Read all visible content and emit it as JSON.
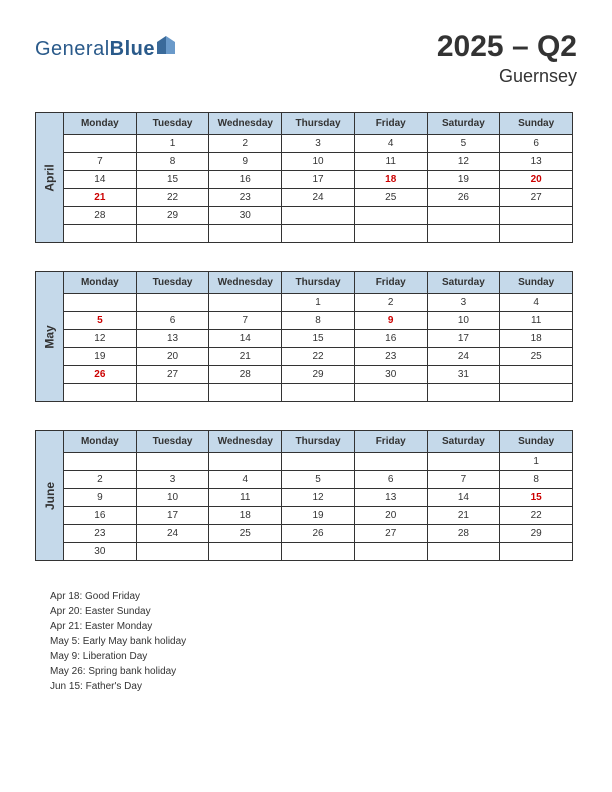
{
  "logo": {
    "text1": "General",
    "text2": "Blue"
  },
  "title": {
    "main": "2025 – Q2",
    "sub": "Guernsey"
  },
  "colors": {
    "header_bg": "#c5d9ea",
    "border": "#333333",
    "text": "#333333",
    "holiday": "#cc0000",
    "logo": "#2a5a8a"
  },
  "day_headers": [
    "Monday",
    "Tuesday",
    "Wednesday",
    "Thursday",
    "Friday",
    "Saturday",
    "Sunday"
  ],
  "months": [
    {
      "name": "April",
      "weeks": [
        [
          "",
          "1",
          "2",
          "3",
          "4",
          "5",
          "6"
        ],
        [
          "7",
          "8",
          "9",
          "10",
          "11",
          "12",
          "13"
        ],
        [
          "14",
          "15",
          "16",
          "17",
          "18",
          "19",
          "20"
        ],
        [
          "21",
          "22",
          "23",
          "24",
          "25",
          "26",
          "27"
        ],
        [
          "28",
          "29",
          "30",
          "",
          "",
          "",
          ""
        ],
        [
          "",
          "",
          "",
          "",
          "",
          "",
          ""
        ]
      ],
      "holidays": [
        [
          2,
          4
        ],
        [
          2,
          6
        ],
        [
          3,
          0
        ]
      ]
    },
    {
      "name": "May",
      "weeks": [
        [
          "",
          "",
          "",
          "1",
          "2",
          "3",
          "4"
        ],
        [
          "5",
          "6",
          "7",
          "8",
          "9",
          "10",
          "11"
        ],
        [
          "12",
          "13",
          "14",
          "15",
          "16",
          "17",
          "18"
        ],
        [
          "19",
          "20",
          "21",
          "22",
          "23",
          "24",
          "25"
        ],
        [
          "26",
          "27",
          "28",
          "29",
          "30",
          "31",
          ""
        ],
        [
          "",
          "",
          "",
          "",
          "",
          "",
          ""
        ]
      ],
      "holidays": [
        [
          1,
          0
        ],
        [
          1,
          4
        ],
        [
          4,
          0
        ]
      ]
    },
    {
      "name": "June",
      "weeks": [
        [
          "",
          "",
          "",
          "",
          "",
          "",
          "1"
        ],
        [
          "2",
          "3",
          "4",
          "5",
          "6",
          "7",
          "8"
        ],
        [
          "9",
          "10",
          "11",
          "12",
          "13",
          "14",
          "15"
        ],
        [
          "16",
          "17",
          "18",
          "19",
          "20",
          "21",
          "22"
        ],
        [
          "23",
          "24",
          "25",
          "26",
          "27",
          "28",
          "29"
        ],
        [
          "30",
          "",
          "",
          "",
          "",
          "",
          ""
        ]
      ],
      "holidays": [
        [
          2,
          6
        ]
      ]
    }
  ],
  "holiday_list": [
    "Apr 18: Good Friday",
    "Apr 20: Easter Sunday",
    "Apr 21: Easter Monday",
    "May 5: Early May bank holiday",
    "May 9: Liberation Day",
    "May 26: Spring bank holiday",
    "Jun 15: Father's Day"
  ]
}
